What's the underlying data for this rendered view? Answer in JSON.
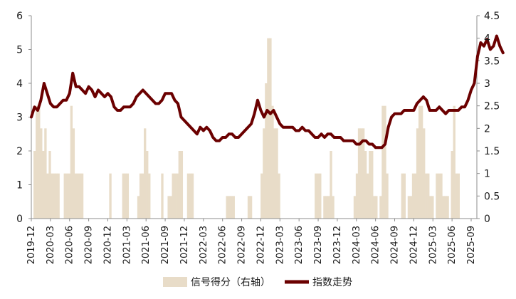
{
  "chart_data": {
    "type": "bar+line",
    "title": "",
    "xlabel": "",
    "ylabel": "",
    "ylim_left": [
      0,
      6
    ],
    "ylim_right": [
      0,
      4.5
    ],
    "left_ticks": [
      "0",
      "1",
      "2",
      "3",
      "4",
      "5",
      "6"
    ],
    "right_ticks": [
      "0",
      "0.5",
      "1",
      "1.5",
      "2",
      "2.5",
      "3",
      "3.5",
      "4",
      "4.5"
    ],
    "x_ticks": [
      "2019-12",
      "2020-03",
      "2020-06",
      "2020-09",
      "2020-12",
      "2021-03",
      "2021-06",
      "2021-09",
      "2021-12",
      "2022-03",
      "2022-06",
      "2022-09",
      "2022-12",
      "2023-03",
      "2023-06",
      "2023-09",
      "2023-12",
      "2024-03",
      "2024-06",
      "2024-09",
      "2024-12",
      "2025-03",
      "2025-06",
      "2025-09"
    ],
    "grid": false,
    "legend_position": "bottom",
    "colors": {
      "bar": "#e8dcc8",
      "line": "#6b0000"
    },
    "series": [
      {
        "name": "信号得分（右轴）",
        "axis": "right",
        "kind": "bar",
        "values": [
          0,
          1.5,
          2.5,
          2.5,
          2,
          1.5,
          2,
          1,
          1.5,
          1,
          1,
          1,
          1,
          0,
          0,
          1,
          1,
          1,
          2.5,
          2,
          1,
          1,
          1,
          1,
          0,
          0,
          0,
          0,
          0,
          0,
          0,
          0,
          0,
          0,
          0,
          0,
          1,
          0,
          0,
          0,
          0,
          0,
          1,
          1,
          1,
          0,
          0,
          0,
          0,
          0.5,
          1,
          1,
          2,
          1.5,
          1,
          0,
          0,
          0,
          0,
          0,
          1,
          0,
          0,
          0.5,
          0.5,
          1,
          1,
          1,
          1.5,
          1.5,
          0,
          0,
          1,
          1,
          1,
          0,
          0,
          0,
          0,
          0,
          0,
          0,
          0,
          0,
          0,
          0,
          0,
          0,
          0,
          0,
          0.5,
          0.5,
          0.5,
          0.5,
          0,
          0,
          0,
          0,
          0,
          0,
          0.5,
          0.5,
          0,
          0,
          0,
          0,
          1,
          2,
          3,
          4,
          4,
          2.5,
          2,
          2,
          1,
          0,
          0,
          0,
          0,
          0,
          0,
          0,
          0,
          0,
          0,
          0,
          0,
          0,
          0,
          0,
          0,
          1,
          1,
          1,
          0,
          0.5,
          0.5,
          0.5,
          1.5,
          0.5,
          0,
          0,
          0,
          0,
          0,
          0,
          0,
          0,
          0,
          0.5,
          1,
          2,
          2,
          2,
          1.5,
          1,
          1.5,
          1.5,
          0.5,
          0.5,
          0,
          0.5,
          2.5,
          2.5,
          1,
          0,
          0,
          0,
          0,
          0,
          0,
          1,
          1,
          0,
          0.5,
          0.5,
          1,
          1,
          2,
          2.5,
          2.5,
          2,
          1,
          1,
          0.5,
          0.5,
          0,
          1,
          1,
          1,
          0.5,
          0.5,
          0.5,
          0,
          1.5,
          2.5,
          1,
          1,
          0,
          0,
          0,
          0,
          0,
          0,
          0,
          0
        ]
      },
      {
        "name": "指数走势",
        "axis": "left",
        "kind": "line",
        "x_unit": "months since 2019-12 (tick labels printed every 3 months)",
        "values": [
          [
            0,
            3.0
          ],
          [
            0.5,
            3.3
          ],
          [
            1,
            3.2
          ],
          [
            1.5,
            3.5
          ],
          [
            2,
            4.0
          ],
          [
            2.5,
            3.7
          ],
          [
            3,
            3.4
          ],
          [
            3.5,
            3.3
          ],
          [
            4,
            3.3
          ],
          [
            4.5,
            3.4
          ],
          [
            5,
            3.5
          ],
          [
            5.5,
            3.5
          ],
          [
            6,
            3.7
          ],
          [
            6.5,
            4.3
          ],
          [
            7,
            3.9
          ],
          [
            7.5,
            3.9
          ],
          [
            8,
            3.8
          ],
          [
            8.5,
            3.7
          ],
          [
            9,
            3.9
          ],
          [
            9.5,
            3.8
          ],
          [
            10,
            3.6
          ],
          [
            10.5,
            3.8
          ],
          [
            11,
            3.7
          ],
          [
            11.5,
            3.6
          ],
          [
            12,
            3.7
          ],
          [
            12.5,
            3.6
          ],
          [
            13,
            3.3
          ],
          [
            13.5,
            3.2
          ],
          [
            14,
            3.2
          ],
          [
            14.5,
            3.3
          ],
          [
            15,
            3.3
          ],
          [
            15.5,
            3.3
          ],
          [
            16,
            3.4
          ],
          [
            16.5,
            3.6
          ],
          [
            17,
            3.7
          ],
          [
            17.5,
            3.8
          ],
          [
            18,
            3.7
          ],
          [
            18.5,
            3.6
          ],
          [
            19,
            3.5
          ],
          [
            19.5,
            3.4
          ],
          [
            20,
            3.4
          ],
          [
            20.5,
            3.5
          ],
          [
            21,
            3.7
          ],
          [
            21.5,
            3.7
          ],
          [
            22,
            3.7
          ],
          [
            22.5,
            3.5
          ],
          [
            23,
            3.4
          ],
          [
            23.5,
            3.0
          ],
          [
            24,
            2.9
          ],
          [
            24.5,
            2.8
          ],
          [
            25,
            2.7
          ],
          [
            25.5,
            2.6
          ],
          [
            26,
            2.5
          ],
          [
            26.5,
            2.7
          ],
          [
            27,
            2.6
          ],
          [
            27.5,
            2.7
          ],
          [
            28,
            2.6
          ],
          [
            28.5,
            2.4
          ],
          [
            29,
            2.3
          ],
          [
            29.5,
            2.3
          ],
          [
            30,
            2.4
          ],
          [
            30.5,
            2.4
          ],
          [
            31,
            2.5
          ],
          [
            31.5,
            2.5
          ],
          [
            32,
            2.4
          ],
          [
            32.5,
            2.4
          ],
          [
            33,
            2.5
          ],
          [
            33.5,
            2.6
          ],
          [
            34,
            2.7
          ],
          [
            34.5,
            2.8
          ],
          [
            35,
            3.1
          ],
          [
            35.5,
            3.5
          ],
          [
            36,
            3.2
          ],
          [
            36.5,
            3.0
          ],
          [
            37,
            3.2
          ],
          [
            37.5,
            3.1
          ],
          [
            38,
            3.2
          ],
          [
            38.5,
            3.0
          ],
          [
            39,
            2.8
          ],
          [
            39.5,
            2.7
          ],
          [
            40,
            2.7
          ],
          [
            40.5,
            2.7
          ],
          [
            41,
            2.7
          ],
          [
            41.5,
            2.6
          ],
          [
            42,
            2.6
          ],
          [
            42.5,
            2.7
          ],
          [
            43,
            2.6
          ],
          [
            43.5,
            2.6
          ],
          [
            44,
            2.5
          ],
          [
            44.5,
            2.4
          ],
          [
            45,
            2.4
          ],
          [
            45.5,
            2.5
          ],
          [
            46,
            2.4
          ],
          [
            46.5,
            2.5
          ],
          [
            47,
            2.5
          ],
          [
            47.5,
            2.4
          ],
          [
            48,
            2.4
          ],
          [
            48.5,
            2.4
          ],
          [
            49,
            2.3
          ],
          [
            49.5,
            2.3
          ],
          [
            50,
            2.3
          ],
          [
            50.5,
            2.3
          ],
          [
            51,
            2.2
          ],
          [
            51.5,
            2.2
          ],
          [
            52,
            2.3
          ],
          [
            52.5,
            2.3
          ],
          [
            53,
            2.2
          ],
          [
            53.5,
            2.2
          ],
          [
            54,
            2.1
          ],
          [
            54.5,
            2.1
          ],
          [
            55,
            2.1
          ],
          [
            55.5,
            2.2
          ],
          [
            56,
            2.7
          ],
          [
            56.5,
            3.0
          ],
          [
            57,
            3.1
          ],
          [
            57.5,
            3.1
          ],
          [
            58,
            3.1
          ],
          [
            58.5,
            3.2
          ],
          [
            59,
            3.2
          ],
          [
            59.5,
            3.2
          ],
          [
            60,
            3.2
          ],
          [
            60.5,
            3.4
          ],
          [
            61,
            3.5
          ],
          [
            61.5,
            3.6
          ],
          [
            62,
            3.5
          ],
          [
            62.5,
            3.2
          ],
          [
            63,
            3.2
          ],
          [
            63.5,
            3.2
          ],
          [
            64,
            3.3
          ],
          [
            64.5,
            3.2
          ],
          [
            65,
            3.1
          ],
          [
            65.5,
            3.2
          ],
          [
            66,
            3.2
          ],
          [
            66.5,
            3.2
          ],
          [
            67,
            3.2
          ],
          [
            67.5,
            3.3
          ],
          [
            68,
            3.3
          ],
          [
            68.5,
            3.5
          ],
          [
            69,
            3.8
          ],
          [
            69.5,
            4.0
          ],
          [
            70,
            4.8
          ],
          [
            70.5,
            5.2
          ],
          [
            71,
            5.1
          ],
          [
            71.5,
            5.3
          ],
          [
            72,
            5.0
          ],
          [
            72.5,
            5.1
          ],
          [
            73,
            5.4
          ],
          [
            73.5,
            5.1
          ],
          [
            74,
            4.9
          ]
        ]
      }
    ]
  }
}
